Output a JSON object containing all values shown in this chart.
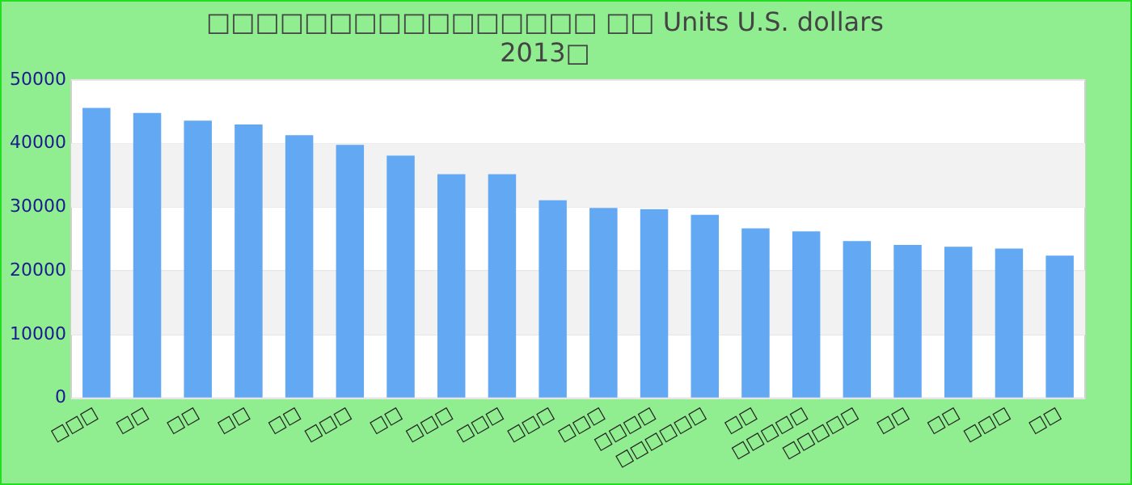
{
  "chart_data": {
    "type": "bar",
    "title": [
      "□□□□□□□□□□□□□□□□ □□ Units U.S. dollars",
      "2013□"
    ],
    "categories": [
      "□□□",
      "□□",
      "□□",
      "□□",
      "□□",
      "□□□",
      "□□",
      "□□□",
      "□□□",
      "□□□",
      "□□□",
      "□□□□",
      "□□□□□□",
      "□□",
      "□□□□□",
      "□□□□□",
      "□□",
      "□□",
      "□□□",
      "□□"
    ],
    "values": [
      45600,
      44800,
      43600,
      43000,
      41300,
      39800,
      38100,
      35200,
      35200,
      31100,
      29900,
      29700,
      28800,
      26700,
      26200,
      24700,
      24100,
      23800,
      23500,
      22400
    ],
    "color": "#62a8f2",
    "ylim": [
      0,
      50000
    ],
    "yticks": [
      0,
      10000,
      20000,
      30000,
      40000,
      50000
    ],
    "grid": "y"
  }
}
